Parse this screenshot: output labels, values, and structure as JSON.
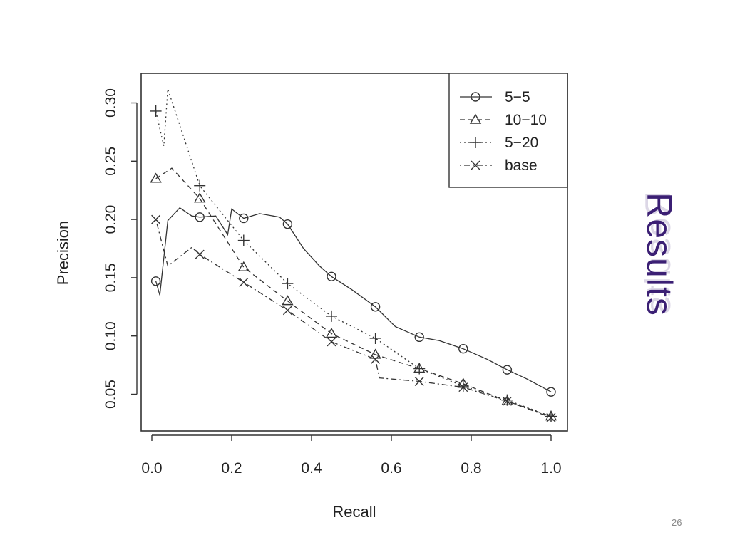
{
  "slide": {
    "title": "Results",
    "number": "26",
    "title_color": "#3b1f74"
  },
  "chart_data": {
    "type": "line",
    "title": "",
    "xlabel": "Recall",
    "ylabel": "Precision",
    "xlim": [
      0.0,
      1.0
    ],
    "ylim": [
      0.02,
      0.32
    ],
    "xticks": [
      "0.0",
      "0.2",
      "0.4",
      "0.6",
      "0.8",
      "1.0"
    ],
    "yticks": [
      "0.05",
      "0.10",
      "0.15",
      "0.20",
      "0.25",
      "0.30"
    ],
    "grid": false,
    "legend_position": "top-right",
    "series": [
      {
        "name": "5−5",
        "line": "solid",
        "marker": "circle",
        "color": "#333333",
        "line_x": [
          0.01,
          0.02,
          0.04,
          0.07,
          0.1,
          0.12,
          0.16,
          0.19,
          0.2,
          0.23,
          0.27,
          0.32,
          0.34,
          0.38,
          0.42,
          0.45,
          0.5,
          0.56,
          0.61,
          0.67,
          0.72,
          0.78,
          0.84,
          0.89,
          0.94,
          1.0
        ],
        "line_y": [
          0.147,
          0.135,
          0.199,
          0.21,
          0.203,
          0.202,
          0.203,
          0.187,
          0.209,
          0.201,
          0.205,
          0.202,
          0.196,
          0.175,
          0.16,
          0.151,
          0.14,
          0.125,
          0.108,
          0.099,
          0.096,
          0.089,
          0.08,
          0.071,
          0.063,
          0.052
        ],
        "x": [
          0.01,
          0.12,
          0.23,
          0.34,
          0.45,
          0.56,
          0.67,
          0.78,
          0.89,
          1.0
        ],
        "y": [
          0.147,
          0.202,
          0.201,
          0.196,
          0.151,
          0.125,
          0.099,
          0.089,
          0.071,
          0.052
        ]
      },
      {
        "name": "10−10",
        "line": "dashed",
        "marker": "triangle",
        "color": "#333333",
        "line_x": [
          0.01,
          0.05,
          0.12,
          0.23,
          0.34,
          0.45,
          0.56,
          0.67,
          0.78,
          0.89,
          1.0
        ],
        "line_y": [
          0.235,
          0.244,
          0.218,
          0.159,
          0.13,
          0.102,
          0.084,
          0.072,
          0.059,
          0.044,
          0.031
        ],
        "x": [
          0.01,
          0.12,
          0.23,
          0.34,
          0.45,
          0.56,
          0.67,
          0.78,
          0.89,
          1.0
        ],
        "y": [
          0.235,
          0.218,
          0.159,
          0.13,
          0.102,
          0.084,
          0.072,
          0.059,
          0.044,
          0.031
        ]
      },
      {
        "name": "5−20",
        "line": "dotted",
        "marker": "plus",
        "color": "#333333",
        "line_x": [
          0.01,
          0.03,
          0.04,
          0.12,
          0.23,
          0.34,
          0.45,
          0.56,
          0.67,
          0.78,
          0.89,
          1.0
        ],
        "line_y": [
          0.293,
          0.263,
          0.312,
          0.229,
          0.182,
          0.145,
          0.117,
          0.098,
          0.072,
          0.057,
          0.045,
          0.031
        ],
        "x": [
          0.01,
          0.12,
          0.23,
          0.34,
          0.45,
          0.56,
          0.67,
          0.78,
          0.89,
          1.0
        ],
        "y": [
          0.293,
          0.229,
          0.182,
          0.145,
          0.117,
          0.098,
          0.072,
          0.057,
          0.045,
          0.031
        ]
      },
      {
        "name": "base",
        "line": "dashdot",
        "marker": "x",
        "color": "#333333",
        "line_x": [
          0.01,
          0.04,
          0.1,
          0.12,
          0.23,
          0.34,
          0.45,
          0.56,
          0.57,
          0.67,
          0.78,
          0.89,
          1.0
        ],
        "line_y": [
          0.2,
          0.16,
          0.176,
          0.17,
          0.146,
          0.122,
          0.095,
          0.08,
          0.064,
          0.061,
          0.056,
          0.044,
          0.03
        ],
        "x": [
          0.01,
          0.12,
          0.23,
          0.34,
          0.45,
          0.56,
          0.67,
          0.78,
          0.89,
          1.0
        ],
        "y": [
          0.2,
          0.17,
          0.146,
          0.122,
          0.095,
          0.08,
          0.061,
          0.056,
          0.044,
          0.03
        ]
      }
    ]
  }
}
